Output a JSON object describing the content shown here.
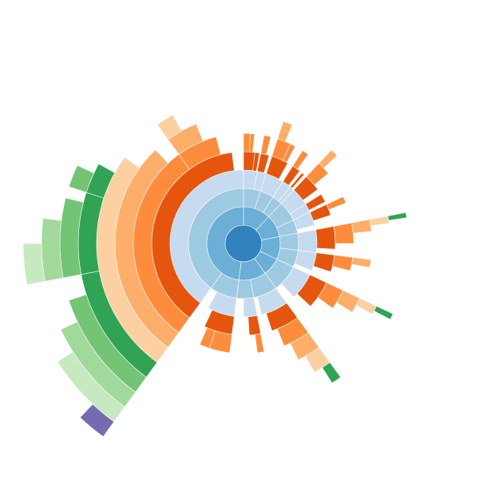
{
  "chart_data": {
    "type": "sunburst",
    "colors": [
      "#3182bd",
      "#6baed6",
      "#9ecae1",
      "#c6dbef",
      "#e6550d",
      "#fd8d3c",
      "#fdae6b",
      "#fdd0a2",
      "#31a354",
      "#74c476",
      "#a1d99b",
      "#c7e9c0",
      "#756bb1"
    ],
    "root": {
      "value": 100,
      "children": [
        {
          "value": 12,
          "children": [
            {
              "value": 5,
              "children": [
                {
                  "value": 3,
                  "children": [
                    {
                      "value": 2,
                      "children": [
                        {
                          "value": 1
                        },
                        {
                          "value": 0.6
                        }
                      ]
                    },
                    {
                      "value": 0.8
                    }
                  ]
                },
                {
                  "value": 2,
                  "children": [
                    {
                      "value": 1.5,
                      "children": [
                        {
                          "value": 1
                        }
                      ]
                    }
                  ]
                }
              ]
            },
            {
              "value": 4,
              "children": [
                {
                  "value": 4,
                  "children": [
                    {
                      "value": 3,
                      "children": [
                        {
                          "value": 2,
                          "children": [
                            {
                              "value": 1.2
                            }
                          ]
                        },
                        {
                          "value": 0.8
                        }
                      ]
                    }
                  ]
                }
              ]
            },
            {
              "value": 3,
              "children": [
                {
                  "value": 2,
                  "children": [
                    {
                      "value": 1.5,
                      "children": [
                        {
                          "value": 1
                        }
                      ]
                    }
                  ]
                },
                {
                  "value": 1,
                  "children": [
                    {
                      "value": 0.5
                    }
                  ]
                }
              ]
            }
          ]
        },
        {
          "value": 10,
          "children": [
            {
              "value": 6,
              "children": [
                {
                  "value": 4,
                  "children": [
                    {
                      "value": 3,
                      "children": [
                        {
                          "value": 2,
                          "children": [
                            {
                              "value": 1
                            }
                          ]
                        }
                      ]
                    }
                  ]
                },
                {
                  "value": 2,
                  "children": [
                    {
                      "value": 1.5
                    }
                  ]
                }
              ]
            },
            {
              "value": 4,
              "children": [
                {
                  "value": 3,
                  "children": [
                    {
                      "value": 2,
                      "children": [
                        {
                          "value": 1
                        }
                      ]
                    }
                  ]
                }
              ]
            }
          ]
        },
        {
          "value": 10,
          "children": [
            {
              "value": 5,
              "children": [
                {
                  "value": 5,
                  "children": [
                    {
                      "value": 4,
                      "children": [
                        {
                          "value": 3,
                          "children": [
                            {
                              "value": 1.5,
                              "children": [
                                {
                                  "value": 0.8,
                                  "children": [
                                    {
                                      "value": 0.5
                                    }
                                  ]
                                }
                              ]
                            }
                          ]
                        }
                      ]
                    }
                  ]
                }
              ]
            },
            {
              "value": 5,
              "children": [
                {
                  "value": 4,
                  "children": [
                    {
                      "value": 3,
                      "children": [
                        {
                          "value": 2,
                          "children": [
                            {
                              "value": 1
                            }
                          ]
                        }
                      ]
                    }
                  ]
                }
              ]
            }
          ]
        },
        {
          "value": 8,
          "children": [
            {
              "value": 8,
              "children": [
                {
                  "value": 6,
                  "children": [
                    {
                      "value": 5,
                      "children": [
                        {
                          "value": 3,
                          "children": [
                            {
                              "value": 2,
                              "children": [
                                {
                                  "value": 1,
                                  "children": [
                                    {
                                      "value": 0.6
                                    }
                                  ]
                                }
                              ]
                            }
                          ]
                        }
                      ]
                    }
                  ]
                }
              ]
            }
          ]
        },
        {
          "value": 12,
          "children": [
            {
              "value": 7,
              "children": [
                {
                  "value": 6,
                  "children": [
                    {
                      "value": 5,
                      "children": [
                        {
                          "value": 4,
                          "children": [
                            {
                              "value": 3,
                              "children": [
                                {
                                  "value": 2,
                                  "children": [
                                    {
                                      "value": 1
                                    }
                                  ]
                                }
                              ]
                            }
                          ]
                        }
                      ]
                    }
                  ]
                }
              ]
            },
            {
              "value": 5,
              "children": [
                {
                  "value": 3,
                  "children": [
                    {
                      "value": 2,
                      "children": [
                        {
                          "value": 1
                        }
                      ]
                    }
                  ]
                }
              ]
            }
          ]
        },
        {
          "value": 48,
          "children": [
            {
              "value": 8,
              "children": [
                {
                  "value": 6,
                  "children": [
                    {
                      "value": 5,
                      "children": [
                        {
                          "value": 3
                        },
                        {
                          "value": 1.5
                        }
                      ]
                    }
                  ]
                }
              ]
            },
            {
              "value": 40,
              "children": [
                {
                  "value": 40,
                  "children": [
                    {
                      "value": 38,
                      "children": [
                        {
                          "value": 30,
                          "children": [
                            {
                              "value": 28,
                              "children": [
                                {
                                  "value": 25,
                                  "children": [
                                    {
                                      "value": 12,
                                      "children": [
                                        {
                                          "value": 10,
                                          "children": [
                                            {
                                              "value": 8,
                                              "children": [
                                                {
                                                  "value": 6,
                                                  "children": [
                                                    {
                                                      "value": 2
                                                    }
                                                  ]
                                                }
                                              ]
                                            }
                                          ]
                                        }
                                      ]
                                    },
                                    {
                                      "value": 8,
                                      "children": [
                                        {
                                          "value": 7,
                                          "children": [
                                            {
                                              "value": 5,
                                              "children": [
                                                {
                                                  "value": 3
                                                }
                                              ]
                                            }
                                          ]
                                        }
                                      ]
                                    },
                                    {
                                      "value": 3,
                                      "children": [
                                        {
                                          "value": 2
                                        }
                                      ]
                                    }
                                  ]
                                }
                              ]
                            }
                          ]
                        },
                        {
                          "value": 6,
                          "children": [
                            {
                              "value": 4,
                              "children": [
                                {
                                  "value": 2
                                }
                              ]
                            }
                          ]
                        }
                      ]
                    }
                  ]
                }
              ]
            }
          ]
        }
      ]
    }
  }
}
